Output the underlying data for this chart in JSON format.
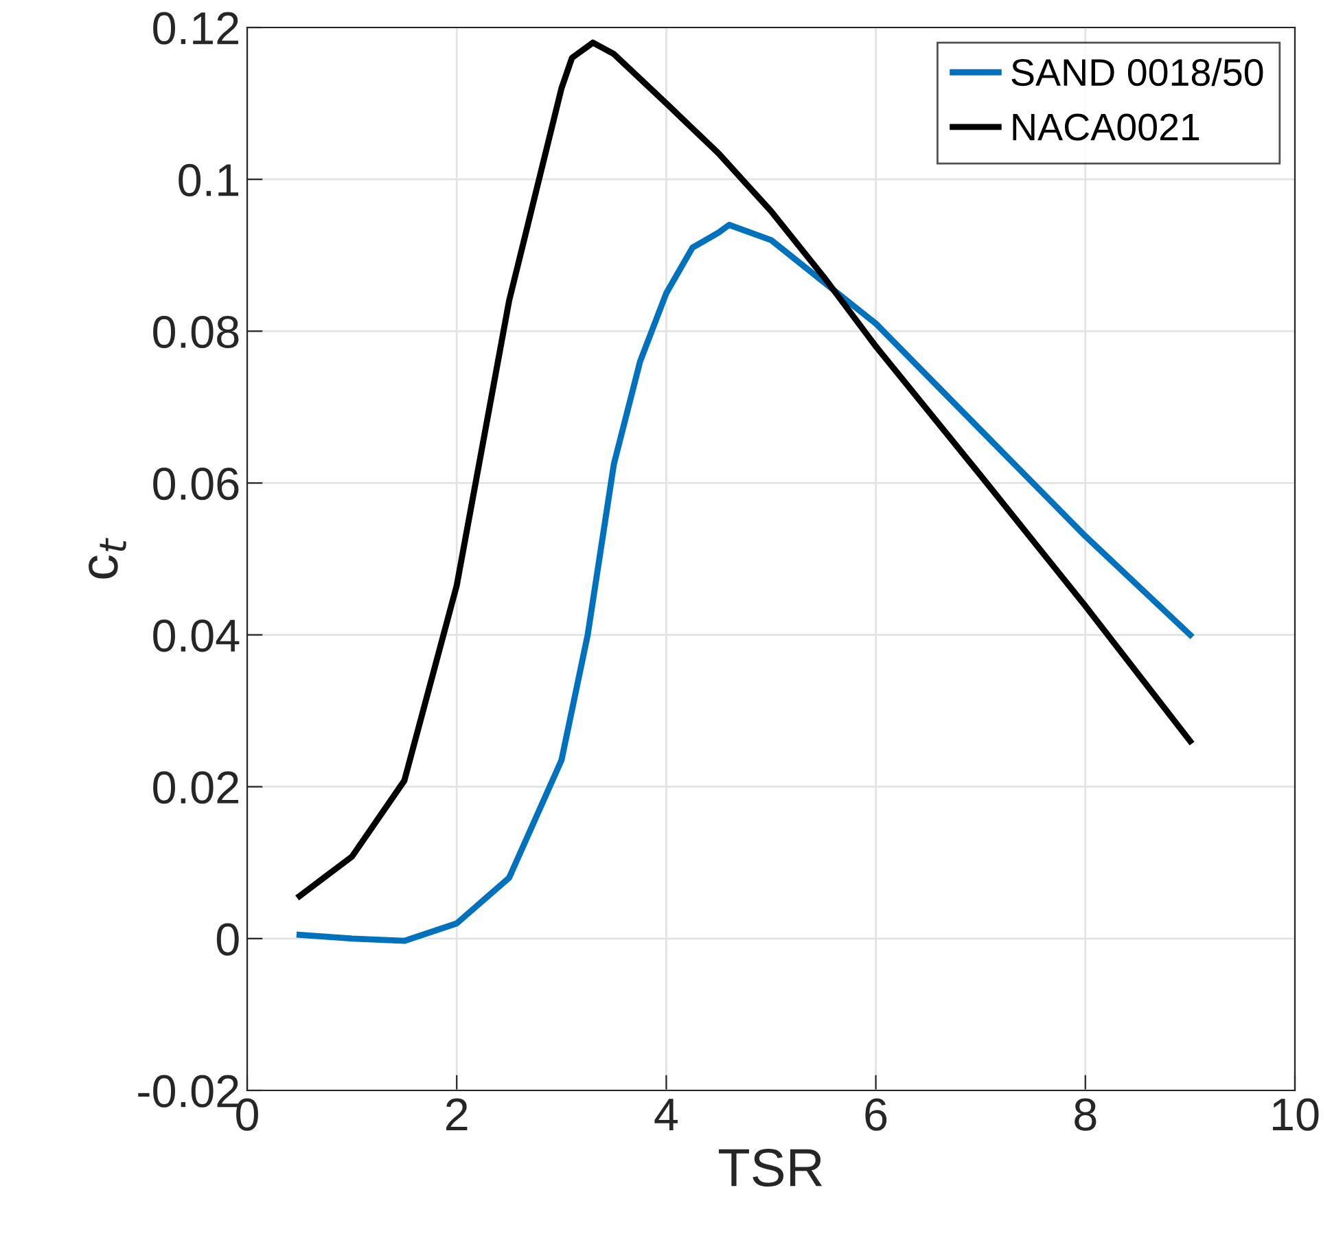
{
  "chart_data": {
    "type": "line",
    "xlabel": "TSR",
    "ylabel": "c$_{t}$",
    "xlim": [
      0,
      10
    ],
    "xticks": [
      0,
      2,
      4,
      6,
      8,
      10
    ],
    "ylim": [
      -0.02,
      0.12
    ],
    "yticks": [
      -0.02,
      0,
      0.02,
      0.04,
      0.06,
      0.08,
      0.1,
      0.12
    ],
    "grid": true,
    "legend": "top right",
    "marker": "none",
    "line_style": "solid",
    "series": [
      {
        "name": "SAND 0018/50",
        "color": "#0072bd",
        "x": [
          0.5,
          1,
          1.5,
          2,
          2.5,
          3,
          3.25,
          3.5,
          3.75,
          4,
          4.25,
          4.5,
          4.6,
          5,
          5.5,
          6,
          7,
          8,
          9
        ],
        "values": [
          0.0005,
          0.0,
          -0.0003,
          0.002,
          0.008,
          0.0235,
          0.04,
          0.0625,
          0.076,
          0.085,
          0.091,
          0.093,
          0.094,
          0.092,
          0.0865,
          0.081,
          0.067,
          0.053,
          0.04
        ]
      },
      {
        "name": "NACA0021",
        "color": "#000000",
        "x": [
          0.5,
          1,
          1.5,
          2,
          2.5,
          3,
          3.1,
          3.3,
          3.5,
          4,
          4.5,
          5,
          5.5,
          6,
          7,
          8,
          9
        ],
        "values": [
          0.0056,
          0.0108,
          0.0208,
          0.0465,
          0.084,
          0.112,
          0.116,
          0.118,
          0.1165,
          0.11,
          0.1034,
          0.0958,
          0.0872,
          0.078,
          0.061,
          0.0438,
          0.026
        ]
      }
    ]
  }
}
